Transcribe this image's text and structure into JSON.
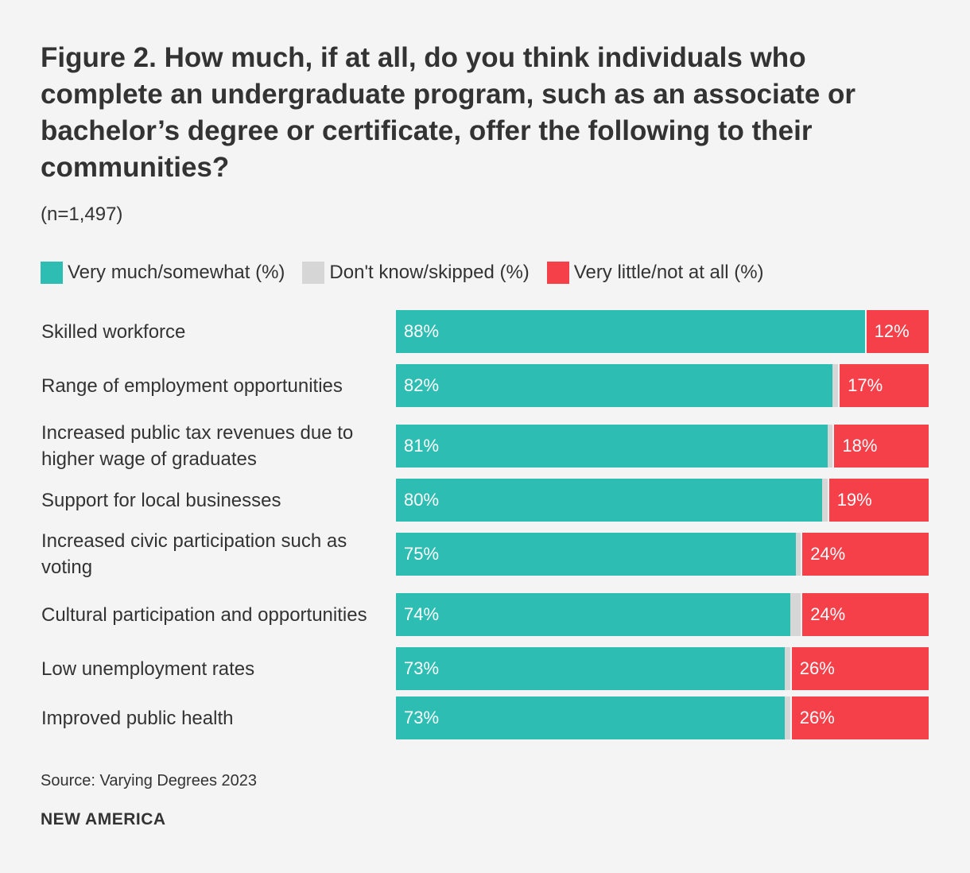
{
  "header": {
    "title": "Figure 2. How much, if at all, do you think individuals who complete an undergraduate program, such as an associate or bachelor’s degree or certificate, offer the following to their communities?",
    "subtitle": "(n=1,497)"
  },
  "colors": {
    "very_much": "#2ebdb3",
    "dont_know": "#d6d6d6",
    "very_little": "#f5404a"
  },
  "chart_data": {
    "type": "bar",
    "orientation": "horizontal",
    "stacked": true,
    "title": "Figure 2. How much, if at all, do you think individuals who complete an undergraduate program, such as an associate or bachelor’s degree or certificate, offer the following to their communities?",
    "xlim": [
      0,
      100
    ],
    "legend": [
      "Very much/somewhat (%)",
      "Don't know/skipped (%)",
      "Very little/not at all (%)"
    ],
    "categories": [
      "Skilled workforce",
      "Range of employment opportunities",
      "Increased public tax revenues due to higher wage of graduates",
      "Support for local businesses",
      "Increased civic participation such as voting",
      "Cultural participation and opportunities",
      "Low unemployment rates",
      "Improved public health"
    ],
    "series": [
      {
        "name": "Very much/somewhat (%)",
        "values": [
          88,
          82,
          81,
          80,
          75,
          74,
          73,
          73
        ]
      },
      {
        "name": "Don't know/skipped (%)",
        "values": [
          0,
          1,
          1,
          1,
          1,
          2,
          1,
          1
        ]
      },
      {
        "name": "Very little/not at all (%)",
        "values": [
          12,
          17,
          18,
          19,
          24,
          24,
          26,
          26
        ]
      }
    ],
    "labels": {
      "very_much": [
        "88%",
        "82%",
        "81%",
        "80%",
        "75%",
        "74%",
        "73%",
        "73%"
      ],
      "very_little": [
        "12%",
        "17%",
        "18%",
        "19%",
        "24%",
        "24%",
        "26%",
        "26%"
      ]
    }
  },
  "footer": {
    "source": "Source: Varying Degrees 2023",
    "brand": "NEW AMERICA"
  }
}
